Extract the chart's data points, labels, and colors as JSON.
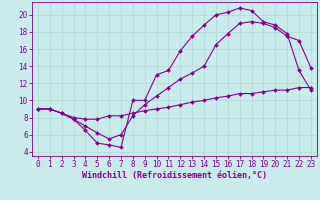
{
  "title": "",
  "xlabel": "Windchill (Refroidissement éolien,°C)",
  "bg_color": "#c8ecec",
  "grid_color": "#b0d8d8",
  "line_color": "#880088",
  "spine_color": "#880088",
  "xlim": [
    -0.5,
    23.5
  ],
  "ylim": [
    3.5,
    21.5
  ],
  "yticks": [
    4,
    6,
    8,
    10,
    12,
    14,
    16,
    18,
    20
  ],
  "xticks": [
    0,
    1,
    2,
    3,
    4,
    5,
    6,
    7,
    8,
    9,
    10,
    11,
    12,
    13,
    14,
    15,
    16,
    17,
    18,
    19,
    20,
    21,
    22,
    23
  ],
  "series1_x": [
    0,
    1,
    2,
    3,
    4,
    5,
    6,
    7,
    8,
    9,
    10,
    11,
    12,
    13,
    14,
    15,
    16,
    17,
    18,
    19,
    20,
    21,
    22,
    23
  ],
  "series1_y": [
    9.0,
    9.0,
    8.5,
    7.8,
    6.5,
    5.0,
    4.8,
    4.5,
    10.0,
    10.0,
    13.0,
    13.5,
    15.8,
    17.5,
    18.8,
    20.0,
    20.3,
    20.8,
    20.5,
    19.2,
    18.8,
    17.8,
    13.5,
    11.2
  ],
  "series2_x": [
    0,
    1,
    2,
    3,
    4,
    5,
    6,
    7,
    8,
    9,
    10,
    11,
    12,
    13,
    14,
    15,
    16,
    17,
    18,
    19,
    20,
    21,
    22,
    23
  ],
  "series2_y": [
    9.0,
    9.0,
    8.5,
    8.0,
    7.8,
    7.8,
    8.2,
    8.2,
    8.5,
    8.8,
    9.0,
    9.2,
    9.5,
    9.8,
    10.0,
    10.3,
    10.5,
    10.8,
    10.8,
    11.0,
    11.2,
    11.2,
    11.5,
    11.5
  ],
  "series3_x": [
    0,
    1,
    2,
    3,
    4,
    5,
    6,
    7,
    8,
    9,
    10,
    11,
    12,
    13,
    14,
    15,
    16,
    17,
    18,
    19,
    20,
    21,
    22,
    23
  ],
  "series3_y": [
    9.0,
    9.0,
    8.5,
    7.8,
    7.0,
    6.2,
    5.5,
    6.0,
    8.2,
    9.5,
    10.5,
    11.5,
    12.5,
    13.2,
    14.0,
    16.5,
    17.8,
    19.0,
    19.2,
    19.0,
    18.5,
    17.5,
    17.0,
    13.8
  ],
  "tick_fontsize": 5.5,
  "xlabel_fontsize": 6.0
}
